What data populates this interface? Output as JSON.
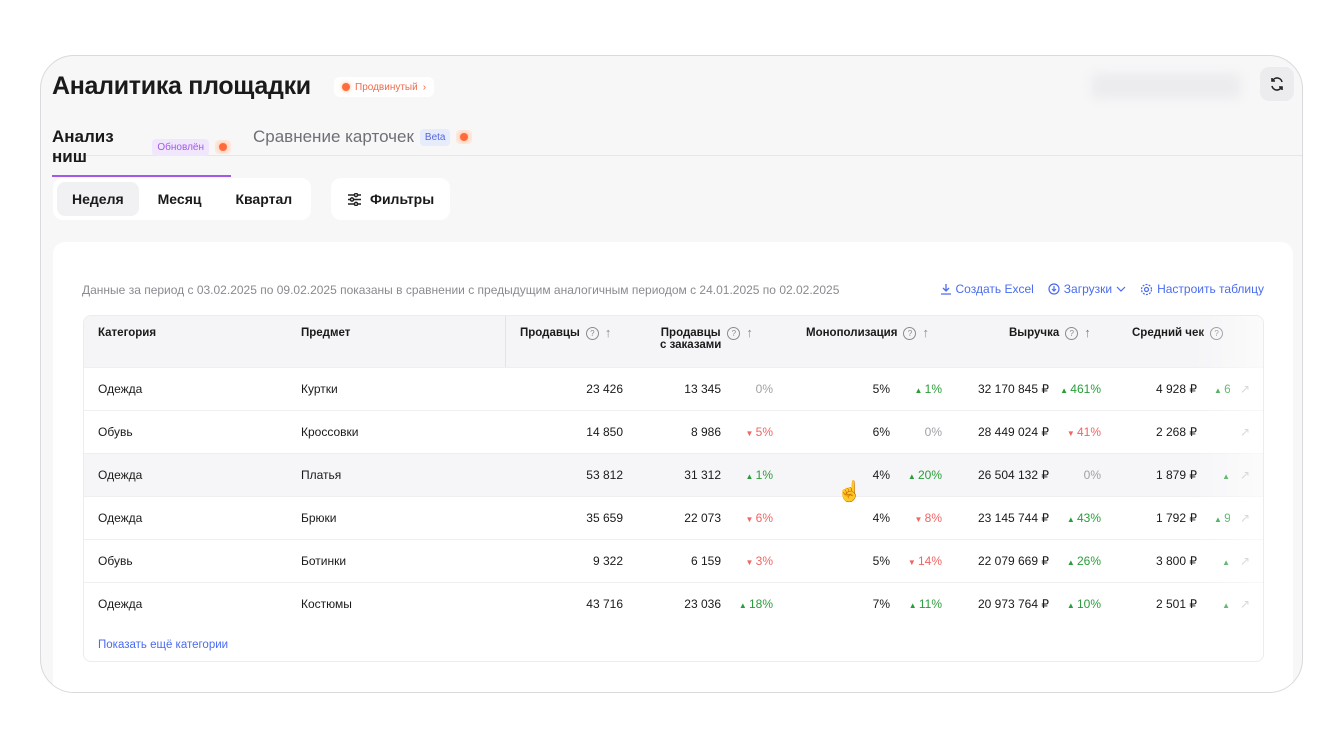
{
  "header": {
    "title": "Аналитика площадки",
    "plan_badge": "Продвинутый",
    "plan_chevron": "›"
  },
  "tabs": [
    {
      "label": "Анализ ниш",
      "badge": "Обновлён",
      "active": true
    },
    {
      "label": "Сравнение карточек",
      "badge": "Beta",
      "active": false
    }
  ],
  "periods": [
    {
      "label": "Неделя",
      "active": true
    },
    {
      "label": "Месяц"
    },
    {
      "label": "Квартал"
    }
  ],
  "filters_label": "Фильтры",
  "period_text": "Данные за период с 03.02.2025 по 09.02.2025 показаны в сравнении с предыдущим аналогичным периодом с 24.01.2025 по 02.02.2025",
  "actions": {
    "excel": "Создать Excel",
    "downloads": "Загрузки",
    "configure": "Настроить таблицу"
  },
  "colors": {
    "accent": "#a259e6",
    "link": "#4a6cf0",
    "up": "#2a9d3a",
    "down": "#f06565"
  },
  "table": {
    "columns": {
      "category": "Категория",
      "subject": "Предмет",
      "sellers": "Продавцы",
      "sellers_orders_1": "Продавцы",
      "sellers_orders_2": "с заказами",
      "mono": "Монополизация",
      "revenue": "Выручка",
      "avg": "Средний чек"
    },
    "sorted_column": "revenue",
    "rows": [
      {
        "category": "Одежда",
        "subject": "Куртки",
        "sellers": "23 426",
        "sellers_orders": "13 345",
        "so_ch": "0%",
        "so_dir": "zero",
        "mono": "5%",
        "mono_ch": "1%",
        "mono_dir": "up",
        "revenue": "32 170 845 ₽",
        "rev_ch": "461%",
        "rev_dir": "up",
        "avg": "4 928 ₽",
        "avg_ch": "6",
        "avg_dir": "up"
      },
      {
        "category": "Обувь",
        "subject": "Кроссовки",
        "sellers": "14 850",
        "sellers_orders": "8 986",
        "so_ch": "5%",
        "so_dir": "down",
        "mono": "6%",
        "mono_ch": "0%",
        "mono_dir": "zero",
        "revenue": "28 449 024 ₽",
        "rev_ch": "41%",
        "rev_dir": "down",
        "avg": "2 268 ₽",
        "avg_ch": "",
        "avg_dir": "none"
      },
      {
        "category": "Одежда",
        "subject": "Платья",
        "sellers": "53 812",
        "sellers_orders": "31 312",
        "so_ch": "1%",
        "so_dir": "up",
        "mono": "4%",
        "mono_ch": "20%",
        "mono_dir": "up",
        "revenue": "26 504 132 ₽",
        "rev_ch": "0%",
        "rev_dir": "zero",
        "avg": "1 879 ₽",
        "avg_ch": "",
        "avg_dir": "up"
      },
      {
        "category": "Одежда",
        "subject": "Брюки",
        "sellers": "35 659",
        "sellers_orders": "22 073",
        "so_ch": "6%",
        "so_dir": "down",
        "mono": "4%",
        "mono_ch": "8%",
        "mono_dir": "down",
        "revenue": "23 145 744 ₽",
        "rev_ch": "43%",
        "rev_dir": "up",
        "avg": "1 792 ₽",
        "avg_ch": "9",
        "avg_dir": "up"
      },
      {
        "category": "Обувь",
        "subject": "Ботинки",
        "sellers": "9 322",
        "sellers_orders": "6 159",
        "so_ch": "3%",
        "so_dir": "down",
        "mono": "5%",
        "mono_ch": "14%",
        "mono_dir": "down",
        "revenue": "22 079 669 ₽",
        "rev_ch": "26%",
        "rev_dir": "up",
        "avg": "3 800 ₽",
        "avg_ch": "",
        "avg_dir": "up"
      },
      {
        "category": "Одежда",
        "subject": "Костюмы",
        "sellers": "43 716",
        "sellers_orders": "23 036",
        "so_ch": "18%",
        "so_dir": "up",
        "mono": "7%",
        "mono_ch": "11%",
        "mono_dir": "up",
        "revenue": "20 973 764 ₽",
        "rev_ch": "10%",
        "rev_dir": "up",
        "avg": "2 501 ₽",
        "avg_ch": "",
        "avg_dir": "up"
      }
    ],
    "show_more": "Показать ещё категории"
  }
}
